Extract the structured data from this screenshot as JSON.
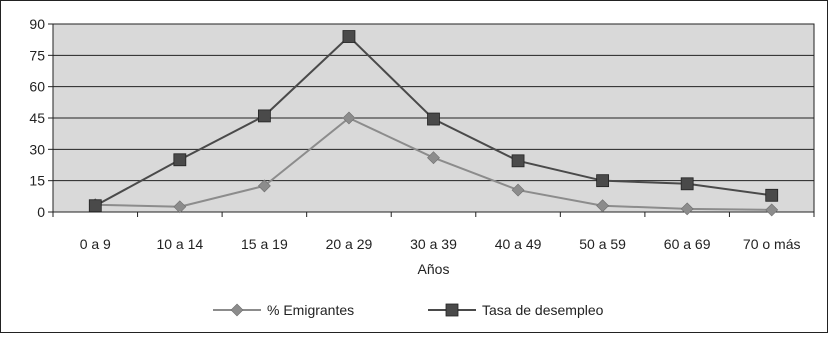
{
  "chart_data": {
    "type": "line",
    "title": "",
    "xlabel": "Años",
    "ylabel": "",
    "categories": [
      "0 a 9",
      "10 a 14",
      "15 a 19",
      "20 a 29",
      "30 a 39",
      "40 a 49",
      "50 a 59",
      "60 a 69",
      "70 o más"
    ],
    "ylim": [
      0,
      90
    ],
    "yticks": [
      "0",
      "15",
      "30",
      "45",
      "60",
      "75",
      "90"
    ],
    "grid": true,
    "legend_position": "bottom",
    "series": [
      {
        "name": "% Emigrantes",
        "marker": "diamond",
        "color": "#8c8c8c",
        "values": [
          3.5,
          2.5,
          12.5,
          45,
          26,
          10.5,
          3,
          1.5,
          1
        ]
      },
      {
        "name": "Tasa de desempleo",
        "marker": "square",
        "color": "#4a4a4a",
        "values": [
          3,
          25,
          46,
          84,
          44.5,
          24.5,
          15,
          13.5,
          8
        ]
      }
    ],
    "plot_background": "#d9d9d9"
  }
}
